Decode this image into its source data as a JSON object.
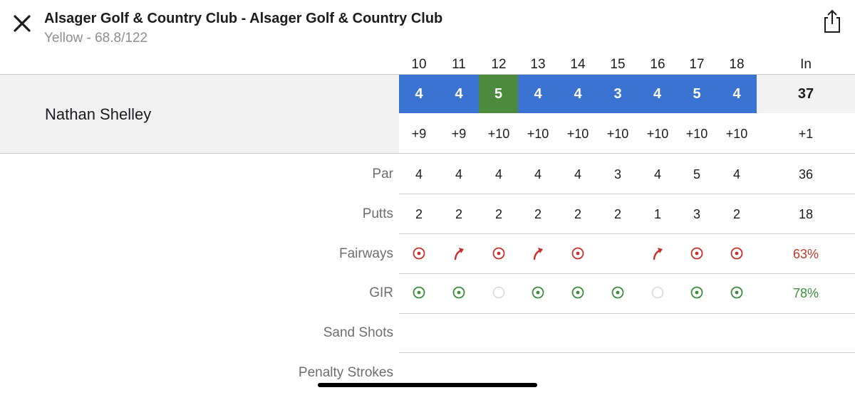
{
  "header": {
    "title": "Alsager Golf & Country Club - Alsager Golf & Country Club",
    "subtitle": "Yellow - 68.8/122"
  },
  "holes": [
    "10",
    "11",
    "12",
    "13",
    "14",
    "15",
    "16",
    "17",
    "18"
  ],
  "total_label": "In",
  "player": {
    "name": "Nathan Shelley",
    "scores": [
      "4",
      "4",
      "5",
      "4",
      "4",
      "3",
      "4",
      "5",
      "4"
    ],
    "score_kinds": [
      "par",
      "par",
      "bogey",
      "par",
      "par",
      "par",
      "par",
      "par",
      "par"
    ],
    "total": "37",
    "to_par": [
      "+9",
      "+9",
      "+10",
      "+10",
      "+10",
      "+10",
      "+10",
      "+10",
      "+10"
    ],
    "to_par_total": "+1"
  },
  "rows": {
    "par": {
      "label": "Par",
      "values": [
        "4",
        "4",
        "4",
        "4",
        "4",
        "3",
        "4",
        "5",
        "4"
      ],
      "total": "36"
    },
    "putts": {
      "label": "Putts",
      "values": [
        "2",
        "2",
        "2",
        "2",
        "2",
        "2",
        "1",
        "3",
        "2"
      ],
      "total": "18"
    },
    "fairways": {
      "label": "Fairways",
      "values": [
        "miss-target",
        "miss-right",
        "miss-target",
        "miss-right",
        "miss-target",
        "none",
        "miss-right",
        "miss-target",
        "miss-target"
      ],
      "total": "63%"
    },
    "gir": {
      "label": "GIR",
      "values": [
        "hit",
        "hit",
        "miss",
        "hit",
        "hit",
        "hit",
        "miss",
        "hit",
        "hit"
      ],
      "total": "78%"
    },
    "sand_shots": {
      "label": "Sand Shots"
    },
    "penalty_strokes": {
      "label": "Penalty Strokes"
    }
  },
  "colors": {
    "par_score": "#3a73d1",
    "bogey_score": "#4e8a3e",
    "fairway_icon": "#c9302c",
    "gir_icon": "#3d8b3d",
    "gir_miss": "#d9d9d9"
  },
  "icons": {
    "close": "close-icon",
    "share": "share-icon"
  }
}
